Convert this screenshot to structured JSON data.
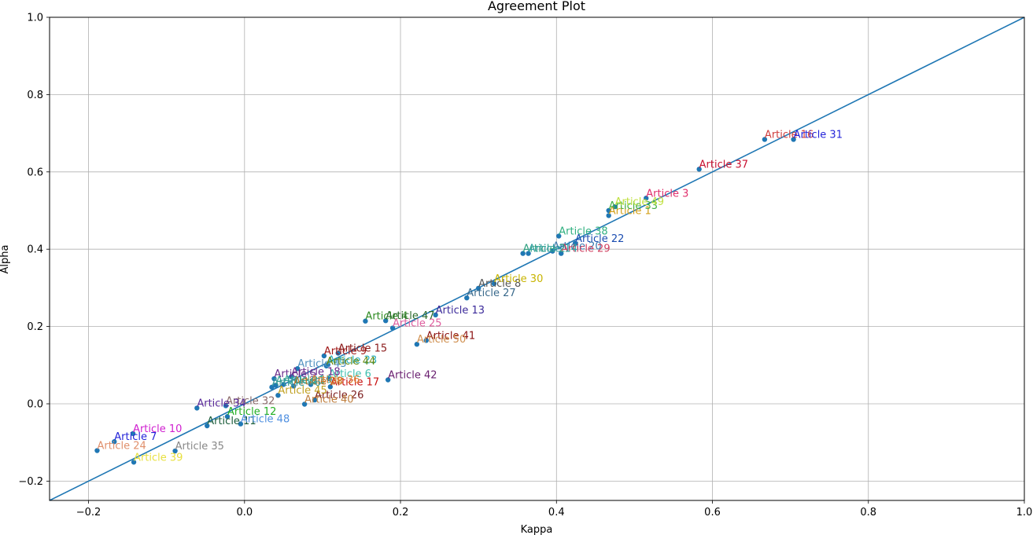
{
  "chart_data": {
    "type": "scatter",
    "title": "Agreement Plot",
    "xlabel": "Kappa",
    "ylabel": "Alpha",
    "xlim": [
      -0.25,
      1.0
    ],
    "ylim": [
      -0.25,
      1.0
    ],
    "grid": true,
    "marker_color": "#1f77b4",
    "reference_line": {
      "x": [
        -0.25,
        1.0
      ],
      "y": [
        -0.25,
        1.0
      ],
      "color": "#1f77b4"
    },
    "x_ticks": [
      -0.2,
      0.0,
      0.2,
      0.4,
      0.6,
      0.8,
      1.0
    ],
    "x_tick_labels": [
      "−0.2",
      "0.0",
      "0.2",
      "0.4",
      "0.6",
      "0.8",
      "1.0"
    ],
    "y_ticks": [
      -0.2,
      0.0,
      0.2,
      0.4,
      0.6,
      0.8,
      1.0
    ],
    "y_tick_labels": [
      "−0.2",
      "0.0",
      "0.2",
      "0.4",
      "0.6",
      "0.8",
      "1.0"
    ],
    "points": [
      {
        "label": "Article 1",
        "kappa": 0.467,
        "alpha": 0.487,
        "color": "#d4a017"
      },
      {
        "label": "Article 3",
        "kappa": 0.515,
        "alpha": 0.532,
        "color": "#e0306c"
      },
      {
        "label": "Article 4",
        "kappa": 0.155,
        "alpha": 0.214,
        "color": "#2e8b22"
      },
      {
        "label": "Article 5",
        "kappa": 0.038,
        "alpha": 0.065,
        "color": "#6a2c8c"
      },
      {
        "label": "Article 6",
        "kappa": 0.108,
        "alpha": 0.065,
        "color": "#40c0b0"
      },
      {
        "label": "Article 7",
        "kappa": -0.167,
        "alpha": -0.098,
        "color": "#2323d9"
      },
      {
        "label": "Article 8",
        "kappa": 0.3,
        "alpha": 0.299,
        "color": "#555555"
      },
      {
        "label": "Article 9",
        "kappa": 0.102,
        "alpha": 0.124,
        "color": "#a01818"
      },
      {
        "label": "Article 10",
        "kappa": -0.143,
        "alpha": -0.077,
        "color": "#d020d0"
      },
      {
        "label": "Article 11",
        "kappa": -0.048,
        "alpha": -0.057,
        "color": "#1a5c3a"
      },
      {
        "label": "Article 12",
        "kappa": -0.022,
        "alpha": -0.033,
        "color": "#22b022"
      },
      {
        "label": "Article 13",
        "kappa": 0.245,
        "alpha": 0.23,
        "color": "#3b2a9a"
      },
      {
        "label": "Article 15",
        "kappa": 0.12,
        "alpha": 0.131,
        "color": "#8b1a1a"
      },
      {
        "label": "Article 16",
        "kappa": 0.667,
        "alpha": 0.684,
        "color": "#d04040"
      },
      {
        "label": "Article 17",
        "kappa": 0.11,
        "alpha": 0.044,
        "color": "#c81010"
      },
      {
        "label": "Article 18",
        "kappa": 0.06,
        "alpha": 0.07,
        "color": "#6a2c8c"
      },
      {
        "label": "Article 19",
        "kappa": 0.05,
        "alpha": 0.05,
        "color": "#3ab0a0"
      },
      {
        "label": "Article 20",
        "kappa": 0.395,
        "alpha": 0.395,
        "color": "#3a7ab0"
      },
      {
        "label": "Article 21",
        "kappa": 0.04,
        "alpha": 0.048,
        "color": "#2e9d8f"
      },
      {
        "label": "Article 22",
        "kappa": 0.424,
        "alpha": 0.415,
        "color": "#1a4cb0"
      },
      {
        "label": "Article 23",
        "kappa": 0.107,
        "alpha": 0.101,
        "color": "#2ab0c0"
      },
      {
        "label": "Article 24",
        "kappa": -0.189,
        "alpha": -0.121,
        "color": "#e0906c"
      },
      {
        "label": "Article 25",
        "kappa": 0.19,
        "alpha": 0.196,
        "color": "#e060a0"
      },
      {
        "label": "Article 26",
        "kappa": 0.09,
        "alpha": 0.01,
        "color": "#7a1a1a"
      },
      {
        "label": "Article 27",
        "kappa": 0.285,
        "alpha": 0.274,
        "color": "#3a6a8c"
      },
      {
        "label": "Article 28",
        "kappa": 0.063,
        "alpha": 0.046,
        "color": "#c07020"
      },
      {
        "label": "Article 29",
        "kappa": 0.406,
        "alpha": 0.389,
        "color": "#d04060"
      },
      {
        "label": "Article 30",
        "kappa": 0.32,
        "alpha": 0.311,
        "color": "#c8b400"
      },
      {
        "label": "Article 31",
        "kappa": 0.704,
        "alpha": 0.684,
        "color": "#2323d9"
      },
      {
        "label": "Article 32",
        "kappa": -0.024,
        "alpha": -0.005,
        "color": "#8a6a6a"
      },
      {
        "label": "Article 33",
        "kappa": 0.467,
        "alpha": 0.5,
        "color": "#44b044"
      },
      {
        "label": "Article 34",
        "kappa": -0.061,
        "alpha": -0.011,
        "color": "#5a2a9a"
      },
      {
        "label": "Article 35",
        "kappa": -0.089,
        "alpha": -0.122,
        "color": "#888888"
      },
      {
        "label": "Article 36",
        "kappa": 0.085,
        "alpha": 0.05,
        "color": "#e08030"
      },
      {
        "label": "Article 37",
        "kappa": 0.583,
        "alpha": 0.607,
        "color": "#c81030"
      },
      {
        "label": "Article 38",
        "kappa": 0.403,
        "alpha": 0.434,
        "color": "#30b080"
      },
      {
        "label": "Article 39",
        "kappa": -0.142,
        "alpha": -0.151,
        "color": "#e8e040"
      },
      {
        "label": "Article 40",
        "kappa": 0.077,
        "alpha": -0.001,
        "color": "#c08040"
      },
      {
        "label": "Article 41",
        "kappa": 0.233,
        "alpha": 0.164,
        "color": "#8b1010"
      },
      {
        "label": "Article 42",
        "kappa": 0.184,
        "alpha": 0.062,
        "color": "#6a2070"
      },
      {
        "label": "Article 43",
        "kappa": 0.068,
        "alpha": 0.091,
        "color": "#5090c0"
      },
      {
        "label": "Article 44",
        "kappa": 0.105,
        "alpha": 0.098,
        "color": "#6a8a10"
      },
      {
        "label": "Article 45",
        "kappa": 0.043,
        "alpha": 0.022,
        "color": "#c0a020"
      },
      {
        "label": "Article 46",
        "kappa": 0.035,
        "alpha": 0.043,
        "color": "#3a9a9a"
      },
      {
        "label": "Article 47",
        "kappa": 0.181,
        "alpha": 0.215,
        "color": "#2a6a2a"
      },
      {
        "label": "Article 48",
        "kappa": -0.005,
        "alpha": -0.052,
        "color": "#5090e0"
      },
      {
        "label": "Article 49",
        "kappa": 0.475,
        "alpha": 0.51,
        "color": "#c0e040"
      },
      {
        "label": "Article 50",
        "kappa": 0.221,
        "alpha": 0.154,
        "color": "#d09050"
      },
      {
        "label": "Article 2",
        "kappa": 0.357,
        "alpha": 0.389,
        "color": "#30a080"
      },
      {
        "label": "Article 14",
        "kappa": 0.364,
        "alpha": 0.389,
        "color": "#30a0a0"
      }
    ]
  }
}
